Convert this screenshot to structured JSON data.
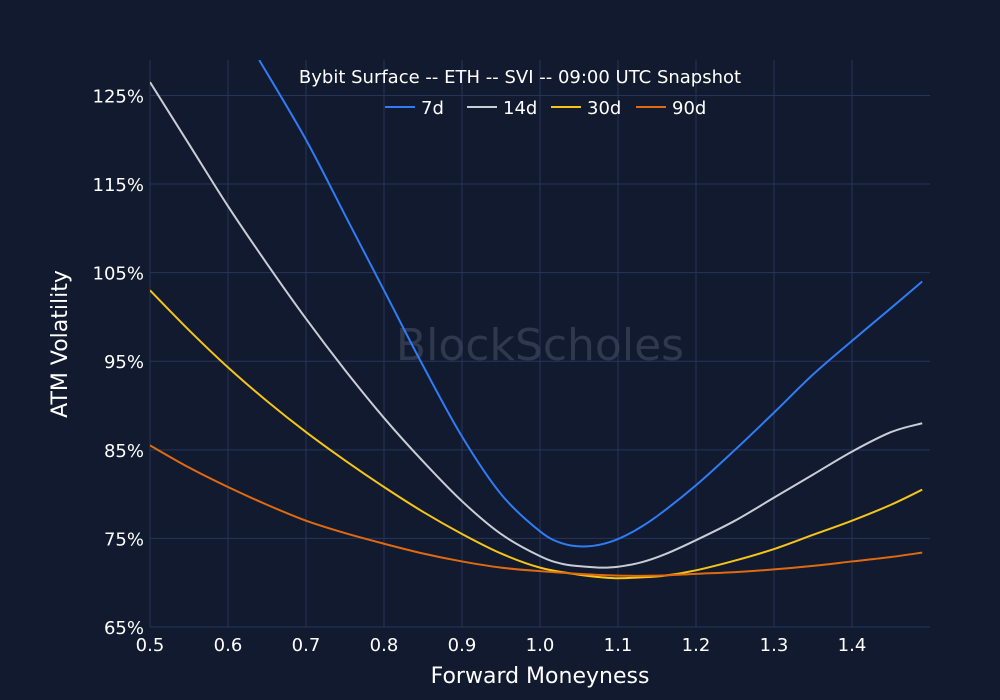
{
  "chart_data": {
    "type": "line",
    "title": "Bybit Surface -- ETH -- SVI -- 09:00 UTC Snapshot",
    "xlabel": "Forward Moneyness",
    "ylabel": "ATM Volatility",
    "xlim": [
      0.5,
      1.5
    ],
    "ylim": [
      65,
      129
    ],
    "x_ticks": [
      0.5,
      0.6,
      0.7,
      0.8,
      0.9,
      1.0,
      1.1,
      1.2,
      1.3,
      1.4
    ],
    "x_tick_labels": [
      "0.5",
      "0.6",
      "0.7",
      "0.8",
      "0.9",
      "1.0",
      "1.1",
      "1.2",
      "1.3",
      "1.4"
    ],
    "y_ticks": [
      65,
      75,
      85,
      95,
      105,
      115,
      125
    ],
    "y_tick_labels": [
      "65%",
      "75%",
      "85%",
      "95%",
      "105%",
      "115%",
      "125%"
    ],
    "grid": true,
    "legend_position": "top-center",
    "watermark": "BlockScholes",
    "series": [
      {
        "name": "7d",
        "color": "#2f7cf6",
        "x": [
          0.64,
          0.7,
          0.75,
          0.8,
          0.85,
          0.9,
          0.95,
          1.0,
          1.03,
          1.06,
          1.09,
          1.12,
          1.15,
          1.2,
          1.25,
          1.3,
          1.35,
          1.4,
          1.45,
          1.49
        ],
        "y": [
          129,
          120,
          111.5,
          103,
          94.5,
          86.5,
          80,
          75.8,
          74.4,
          74.1,
          74.6,
          75.8,
          77.5,
          81,
          85,
          89.2,
          93.5,
          97.3,
          101,
          104
        ]
      },
      {
        "name": "14d",
        "color": "#c9cdd6",
        "x": [
          0.5,
          0.55,
          0.6,
          0.65,
          0.7,
          0.75,
          0.8,
          0.85,
          0.9,
          0.95,
          1.0,
          1.03,
          1.06,
          1.08,
          1.1,
          1.13,
          1.16,
          1.2,
          1.25,
          1.3,
          1.35,
          1.4,
          1.45,
          1.49
        ],
        "y": [
          126.5,
          119.5,
          112.5,
          106,
          99.8,
          94,
          88.6,
          83.7,
          79.2,
          75.5,
          73,
          72.1,
          71.8,
          71.7,
          71.8,
          72.3,
          73.2,
          74.8,
          77,
          79.6,
          82.2,
          84.8,
          87,
          88
        ]
      },
      {
        "name": "30d",
        "color": "#f5c518",
        "x": [
          0.5,
          0.55,
          0.6,
          0.65,
          0.7,
          0.75,
          0.8,
          0.85,
          0.9,
          0.95,
          1.0,
          1.05,
          1.08,
          1.1,
          1.13,
          1.16,
          1.2,
          1.25,
          1.3,
          1.35,
          1.4,
          1.45,
          1.49
        ],
        "y": [
          103,
          98.5,
          94.3,
          90.5,
          87,
          83.8,
          80.8,
          78,
          75.5,
          73.3,
          71.7,
          70.9,
          70.6,
          70.5,
          70.6,
          70.8,
          71.4,
          72.5,
          73.8,
          75.4,
          77,
          78.8,
          80.5
        ]
      },
      {
        "name": "90d",
        "color": "#e06a10",
        "x": [
          0.5,
          0.55,
          0.6,
          0.65,
          0.7,
          0.75,
          0.8,
          0.85,
          0.9,
          0.95,
          1.0,
          1.05,
          1.1,
          1.15,
          1.2,
          1.25,
          1.3,
          1.35,
          1.4,
          1.45,
          1.49
        ],
        "y": [
          85.5,
          83,
          80.8,
          78.8,
          77,
          75.6,
          74.4,
          73.3,
          72.4,
          71.7,
          71.3,
          71,
          70.8,
          70.8,
          71,
          71.2,
          71.5,
          71.9,
          72.4,
          72.9,
          73.4
        ]
      }
    ]
  }
}
